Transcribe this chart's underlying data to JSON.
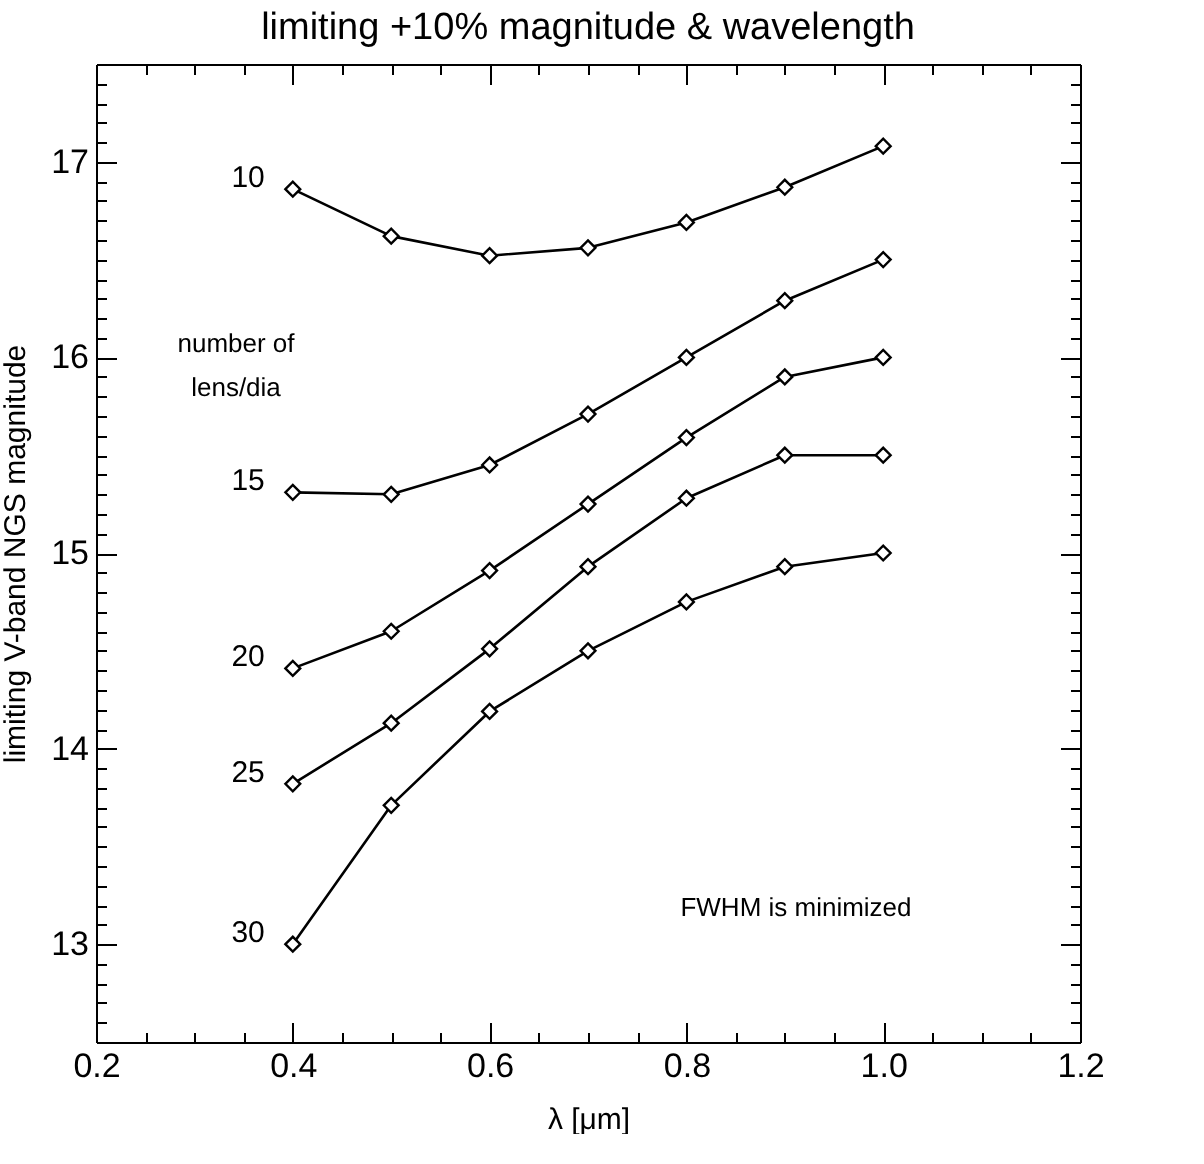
{
  "chart_data": {
    "type": "line",
    "title": "limiting +10% magnitude & wavelength",
    "xlabel": "λ [μm]",
    "ylabel": "limiting V-band NGS magnitude",
    "x": [
      0.4,
      0.5,
      0.6,
      0.7,
      0.8,
      0.9,
      1.0
    ],
    "series": [
      {
        "name": "10",
        "color": "#000000",
        "values": [
          16.86,
          16.62,
          16.52,
          16.56,
          16.69,
          16.87,
          17.08
        ]
      },
      {
        "name": "15",
        "color": "#000000",
        "values": [
          15.31,
          15.3,
          15.45,
          15.71,
          16.0,
          16.29,
          16.5
        ]
      },
      {
        "name": "20",
        "color": "#000000",
        "values": [
          14.41,
          14.6,
          14.91,
          15.25,
          15.59,
          15.9,
          16.0
        ]
      },
      {
        "name": "25",
        "color": "#000000",
        "values": [
          13.82,
          14.13,
          14.51,
          14.93,
          15.28,
          15.5,
          15.5
        ]
      },
      {
        "name": "30",
        "color": "#000000",
        "values": [
          13.0,
          13.71,
          14.19,
          14.5,
          14.75,
          14.93,
          15.0
        ]
      }
    ],
    "annotations": [
      "number of lens/dia",
      "FWHM is minimized"
    ],
    "xlim": [
      0.2,
      1.2
    ],
    "ylim": [
      12.5,
      17.5
    ],
    "xticks": [
      {
        "value": 0.2,
        "label": "0.2"
      },
      {
        "value": 0.25,
        "label": null
      },
      {
        "value": 0.3,
        "label": null
      },
      {
        "value": 0.35,
        "label": null
      },
      {
        "value": 0.4,
        "label": "0.4"
      },
      {
        "value": 0.45,
        "label": null
      },
      {
        "value": 0.5,
        "label": null
      },
      {
        "value": 0.55,
        "label": null
      },
      {
        "value": 0.6,
        "label": "0.6"
      },
      {
        "value": 0.65,
        "label": null
      },
      {
        "value": 0.7,
        "label": null
      },
      {
        "value": 0.75,
        "label": null
      },
      {
        "value": 0.8,
        "label": "0.8"
      },
      {
        "value": 0.85,
        "label": null
      },
      {
        "value": 0.9,
        "label": null
      },
      {
        "value": 0.95,
        "label": null
      },
      {
        "value": 1.0,
        "label": "1.0"
      },
      {
        "value": 1.05,
        "label": null
      },
      {
        "value": 1.1,
        "label": null
      },
      {
        "value": 1.15,
        "label": null
      },
      {
        "value": 1.2,
        "label": "1.2"
      }
    ],
    "yticks": [
      {
        "value": 12.6,
        "label": null
      },
      {
        "value": 12.7,
        "label": null
      },
      {
        "value": 12.8,
        "label": null
      },
      {
        "value": 12.9,
        "label": null
      },
      13,
      {
        "value": 13.1,
        "label": null
      },
      {
        "value": 13.2,
        "label": null
      },
      {
        "value": 13.3,
        "label": null
      },
      {
        "value": 13.4,
        "label": null
      },
      {
        "value": 13.5,
        "label": null
      },
      {
        "value": 13.6,
        "label": null
      },
      {
        "value": 13.7,
        "label": null
      },
      {
        "value": 13.8,
        "label": null
      },
      {
        "value": 13.9,
        "label": null
      },
      14,
      {
        "value": 14.1,
        "label": null
      },
      {
        "value": 14.2,
        "label": null
      },
      {
        "value": 14.3,
        "label": null
      },
      {
        "value": 14.4,
        "label": null
      },
      {
        "value": 14.5,
        "label": null
      },
      {
        "value": 14.6,
        "label": null
      },
      {
        "value": 14.7,
        "label": null
      },
      {
        "value": 14.8,
        "label": null
      },
      {
        "value": 14.9,
        "label": null
      },
      15,
      {
        "value": 15.1,
        "label": null
      },
      {
        "value": 15.2,
        "label": null
      },
      {
        "value": 15.3,
        "label": null
      },
      {
        "value": 15.4,
        "label": null
      },
      {
        "value": 15.5,
        "label": null
      },
      {
        "value": 15.6,
        "label": null
      },
      {
        "value": 15.7,
        "label": null
      },
      {
        "value": 15.8,
        "label": null
      },
      {
        "value": 15.9,
        "label": null
      },
      16,
      {
        "value": 16.1,
        "label": null
      },
      {
        "value": 16.2,
        "label": null
      },
      {
        "value": 16.3,
        "label": null
      },
      {
        "value": 16.4,
        "label": null
      },
      {
        "value": 16.5,
        "label": null
      },
      {
        "value": 16.6,
        "label": null
      },
      {
        "value": 16.7,
        "label": null
      },
      {
        "value": 16.8,
        "label": null
      },
      {
        "value": 16.9,
        "label": null
      },
      17,
      {
        "value": 17.1,
        "label": null
      },
      {
        "value": 17.2,
        "label": null
      },
      {
        "value": 17.3,
        "label": null
      },
      {
        "value": 17.4,
        "label": null
      }
    ],
    "grid": false,
    "legend": false,
    "marker": "diamond",
    "line_style": "solid"
  }
}
